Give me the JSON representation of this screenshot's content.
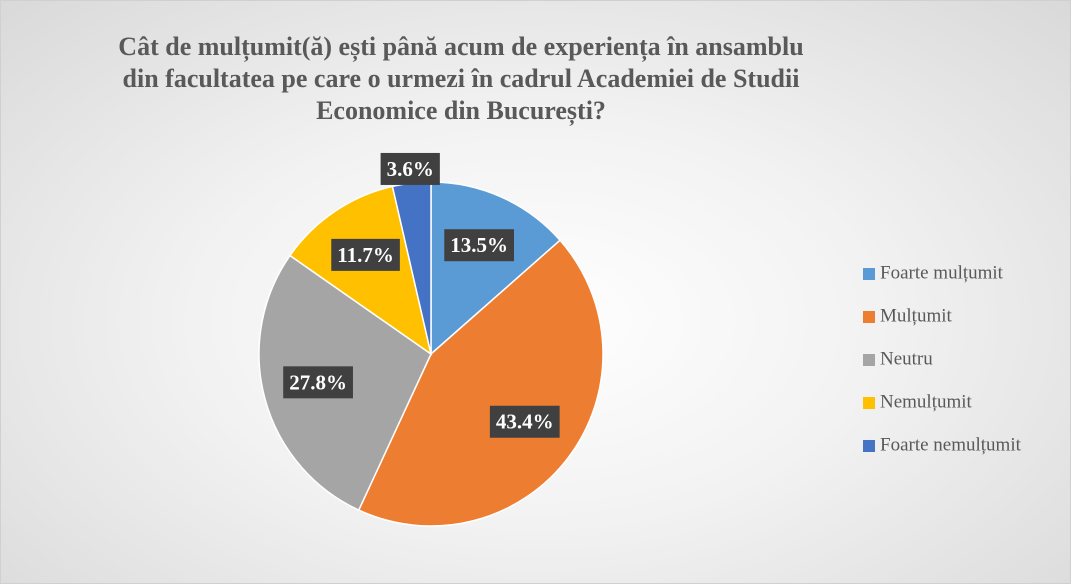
{
  "chart_data": {
    "type": "pie",
    "title": "Cât de mulțumit(ă) ești până acum de experiența în ansamblu din facultatea pe care o urmezi în cadrul Academiei de Studii Economice din București?",
    "categories": [
      "Foarte mulțumit",
      "Mulțumit",
      "Neutru",
      "Nemulțumit",
      "Foarte nemulțumit"
    ],
    "values": [
      13.5,
      43.4,
      27.8,
      11.7,
      3.6
    ],
    "value_labels": [
      "13.5%",
      "43.4%",
      "27.8%",
      "11.7%",
      "3.6%"
    ],
    "colors": [
      "#5B9BD5",
      "#ED7D31",
      "#A5A5A5",
      "#FFC000",
      "#4472C4"
    ],
    "legend": "right"
  }
}
